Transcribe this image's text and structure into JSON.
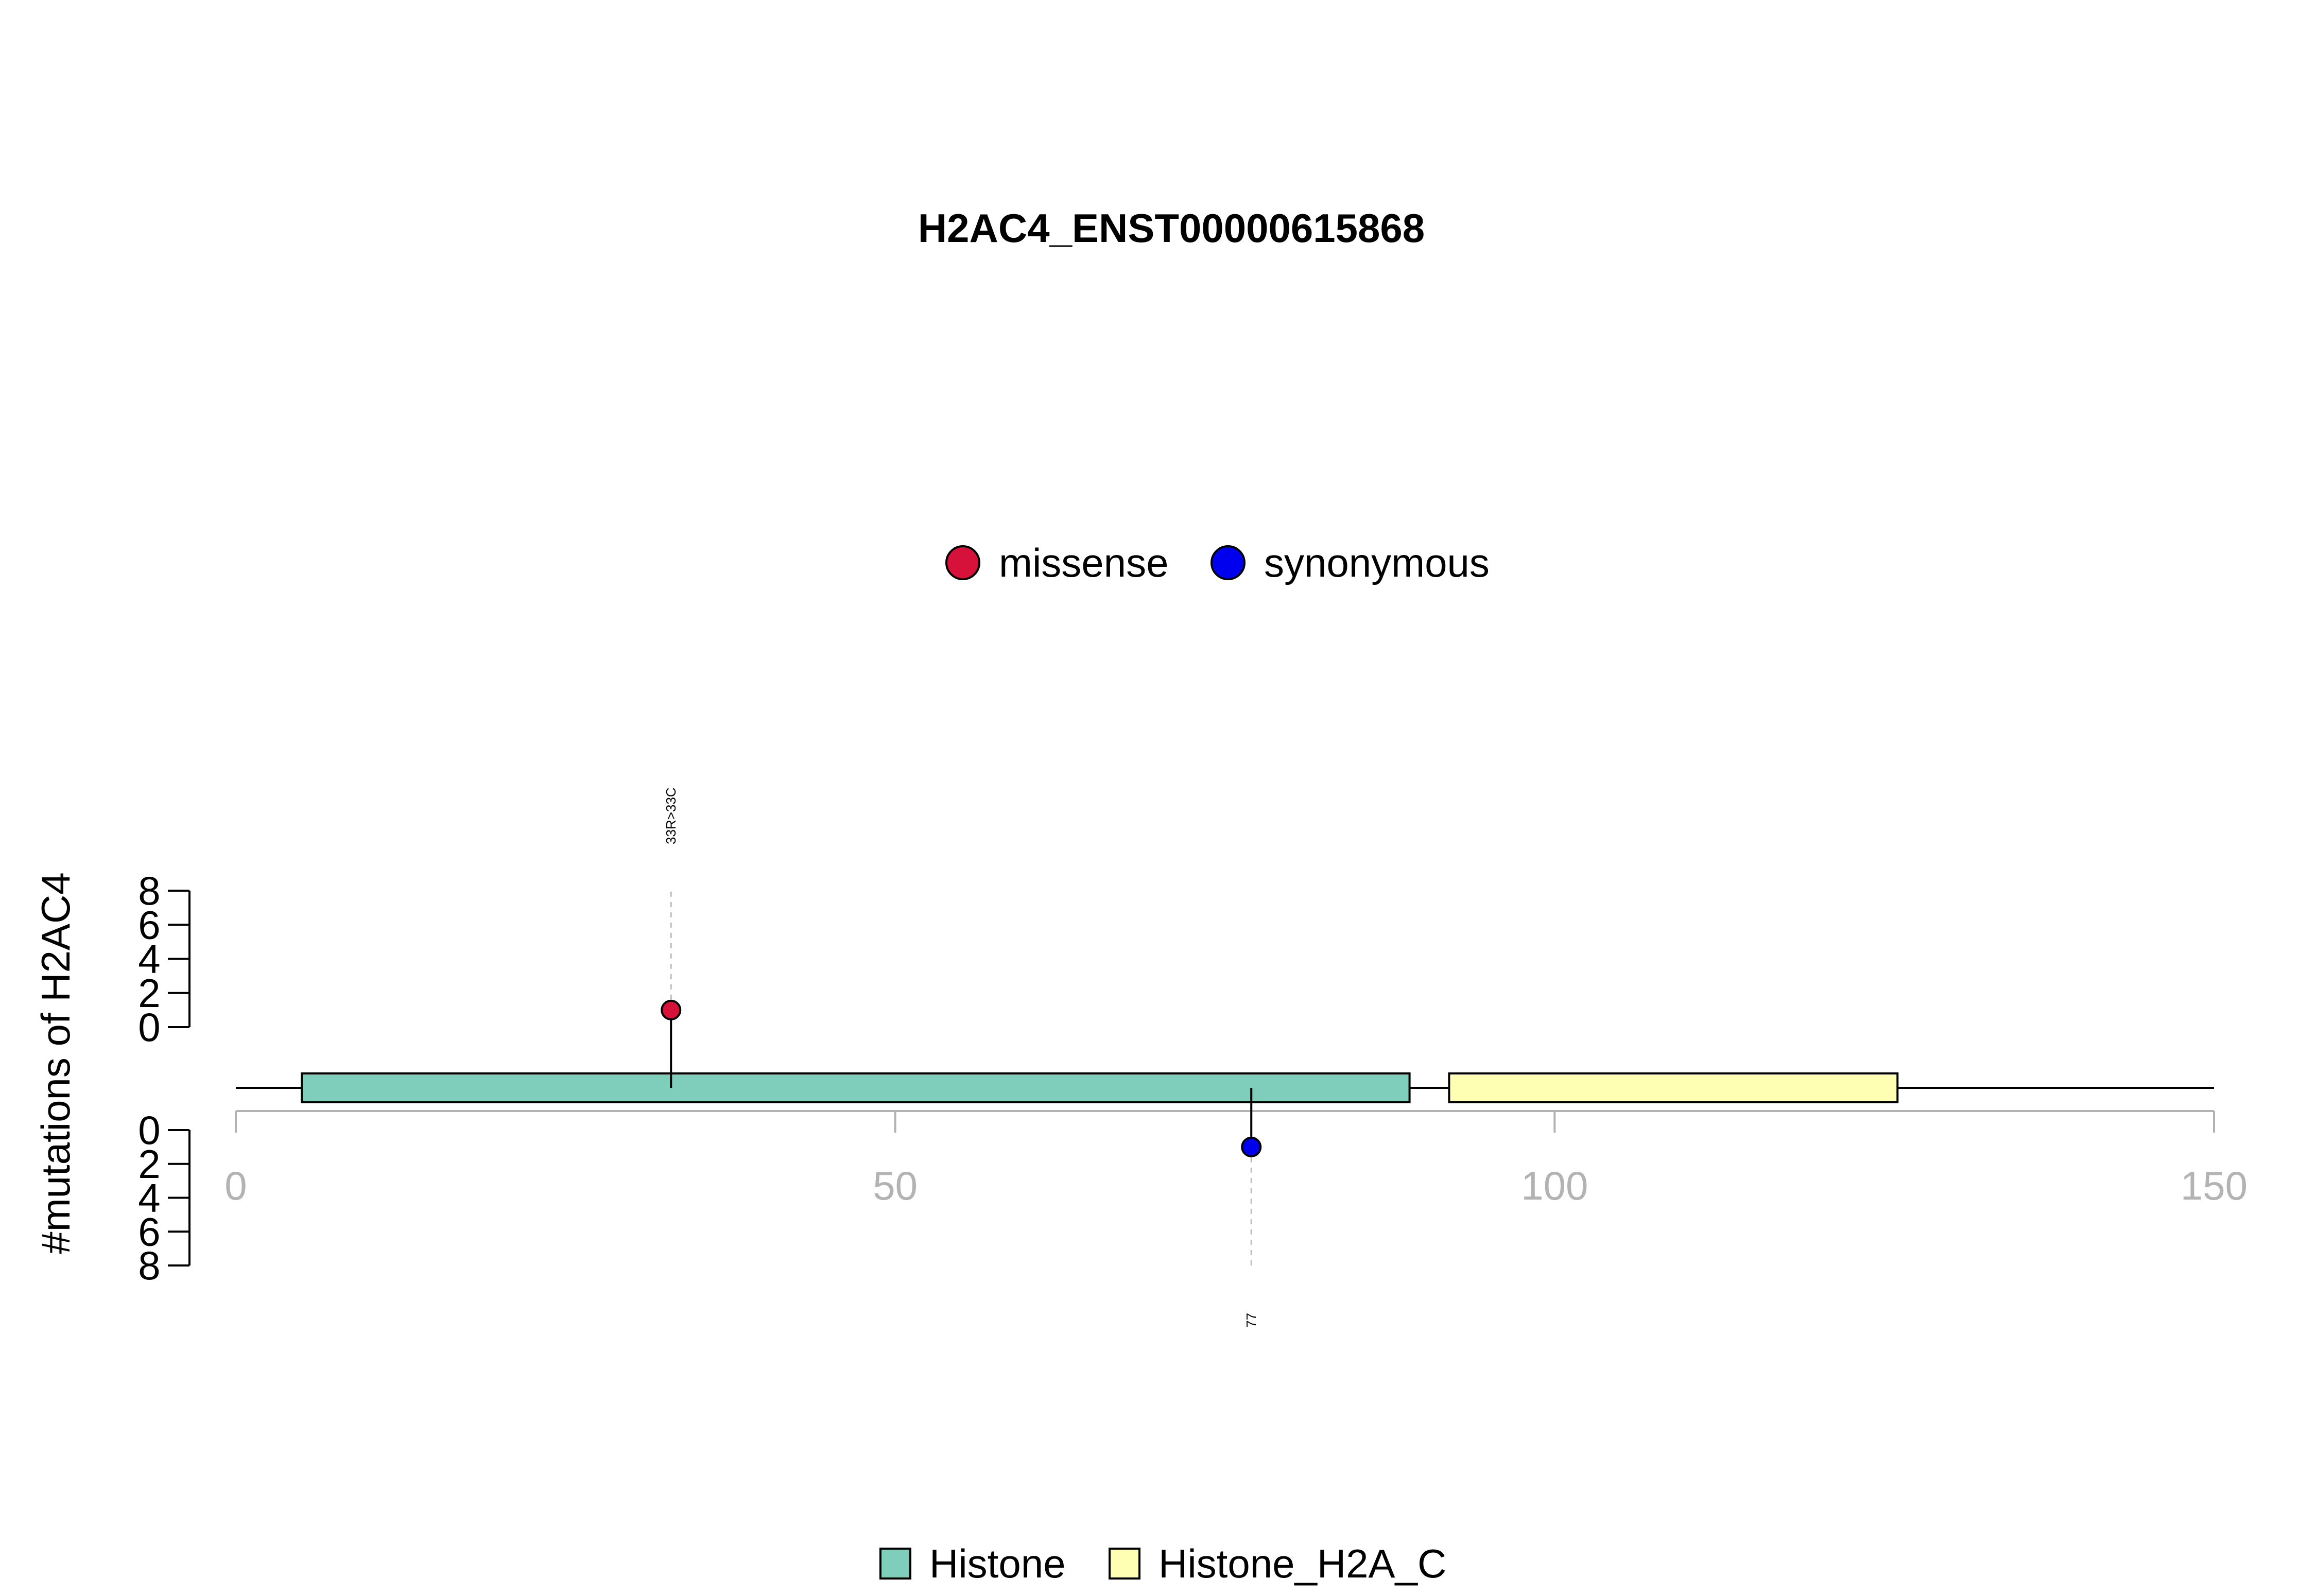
{
  "chart_data": {
    "type": "lollipop",
    "title": "H2AC4_ENST00000615868",
    "ylabel": "#mutations of H2AC4",
    "xlim": [
      0,
      150
    ],
    "x_ticks": [
      "0",
      "50",
      "100",
      "150"
    ],
    "y_ticks": [
      "0",
      "2",
      "4",
      "6",
      "8"
    ],
    "ylim": [
      0,
      8
    ],
    "protein_length": 150,
    "mutation_legend": [
      {
        "label": "missense",
        "color": "#d6113a"
      },
      {
        "label": "synonymous",
        "color": "#0000ee"
      }
    ],
    "domain_legend": [
      {
        "label": "Histone",
        "color": "#7fcdbb"
      },
      {
        "label": "Histone_H2A_C",
        "color": "#ffffb3"
      }
    ],
    "domains": [
      {
        "name": "Histone",
        "start": 5,
        "end": 89,
        "color": "#7fcdbb"
      },
      {
        "name": "Histone_H2A_C",
        "start": 92,
        "end": 126,
        "color": "#ffffb3"
      }
    ],
    "mutations": [
      {
        "position": 33,
        "count": 1,
        "type": "missense",
        "label": "33R>33C",
        "side": "top",
        "color": "#d6113a"
      },
      {
        "position": 77,
        "count": 1,
        "type": "synonymous",
        "label": "77",
        "side": "bottom",
        "color": "#0000ee"
      }
    ]
  }
}
